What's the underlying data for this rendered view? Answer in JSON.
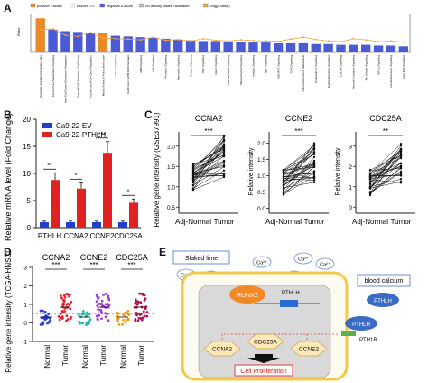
{
  "panels": {
    "a": "A",
    "b": "B",
    "c": "C",
    "d": "D",
    "e": "E"
  },
  "panel_a": {
    "legend": [
      "positive z-score",
      "z-score = 0",
      "negative z-score",
      "no activity pattern available",
      "-log(p-value)"
    ],
    "y_label": "Ratio",
    "categories": [
      "Estrogen-mediated S-phase Entry",
      "Kinetochore Metaphase Signaling",
      "Inter-Cell Cycle Checkpoint Regulation",
      "Role of CHK Proteins in Cell Cycle",
      "Cyclins and Cell Cycle Regulation",
      "Mitotic Roles of Polo-Like Kinase",
      "Glioma Signaling",
      "Cell Cycle: G2/M DNA Damage",
      "ATM Signaling",
      "p53 Signaling",
      "Prolactin Signaling",
      "Pancreatic Signaling",
      "Relaxin Signaling",
      "HGF Signaling",
      "Renin Signaling",
      "Cell-Fibroblast Signaling",
      "Mesenchymal Signaling",
      "Integrin Signaling",
      "NGF Signaling",
      "PI3K/AKT Signaling",
      "GP6 Signaling",
      "Colorectal Cancer Metastasis",
      "Endothelin-1 Signaling",
      "Ephrin Receptor Signaling",
      "CXCR4 Signaling",
      "Axonal Guidance Signaling",
      "Tec Kinase Signaling",
      "HIF1a Signaling",
      "Insulin Receptor Signaling",
      "Rho GDI Signaling"
    ],
    "bar_heights": [
      0.45,
      0.3,
      0.28,
      0.27,
      0.26,
      0.25,
      0.22,
      0.21,
      0.2,
      0.19,
      0.18,
      0.17,
      0.16,
      0.15,
      0.15,
      0.14,
      0.14,
      0.13,
      0.13,
      0.12,
      0.12,
      0.12,
      0.11,
      0.11,
      0.1,
      0.1,
      0.1,
      0.09,
      0.09,
      0.08
    ],
    "bar_kind": [
      "pos",
      "neg",
      "neg",
      "neg",
      "neg",
      "pos",
      "neg",
      "neg",
      "neg",
      "neg",
      "neg",
      "neg",
      "neg",
      "neg",
      "neg",
      "neg",
      "neg",
      "neg",
      "neg",
      "neg",
      "neg",
      "neg",
      "neg",
      "neg",
      "neg",
      "neg",
      "neg",
      "neg",
      "neg",
      "neg"
    ],
    "pvalue_line": [
      0.6,
      0.62,
      0.45,
      0.42,
      0.52,
      0.38,
      0.36,
      0.35,
      0.33,
      0.4,
      0.32,
      0.34,
      0.3,
      0.36,
      0.32,
      0.3,
      0.33,
      0.31,
      0.3,
      0.29,
      0.35,
      0.4,
      0.34,
      0.3,
      0.28,
      0.36,
      0.33,
      0.28,
      0.3,
      0.27
    ],
    "colors": {
      "positive": "#e98a2a",
      "negative": "#4a5bd4",
      "line": "#f0a640",
      "zero": "#ffffff"
    }
  },
  "panel_b": {
    "y_label": "Relative mRNA level (Fold Change)",
    "legend": [
      "Ca9-22-EV",
      "Ca9-22-PTHLH"
    ],
    "colors": [
      "#1f3fcf",
      "#e02222"
    ],
    "categories": [
      "PTHLH",
      "CCNA2",
      "CCNE2",
      "CDC25A"
    ],
    "series": [
      {
        "name": "Ca9-22-EV",
        "values": [
          1,
          1,
          1,
          1
        ]
      },
      {
        "name": "Ca9-22-PTHLH",
        "values": [
          8.8,
          7.2,
          13.8,
          4.6
        ]
      }
    ],
    "significance": [
      "**",
      "*",
      "***",
      "*"
    ],
    "ylim": [
      0,
      20
    ],
    "ticks": [
      "0",
      "5",
      "10",
      "15",
      "20"
    ]
  },
  "panel_c": {
    "y_label_main": "Relative gene intensity (GSE37991)",
    "y_label_other": "Relative intensity",
    "plots": [
      {
        "title": "CCNA2",
        "sig": "***",
        "ticks": [
          "0.5",
          "1.0",
          "1.5",
          "2.0"
        ]
      },
      {
        "title": "CCNE2",
        "sig": "***",
        "ticks": [
          "0.0",
          "0.5",
          "1.0",
          "1.5",
          "2.0"
        ]
      },
      {
        "title": "CDC25A",
        "sig": "**",
        "ticks": [
          "0",
          "1",
          "2",
          "3"
        ]
      }
    ],
    "x_labels": [
      "Adj-Normal",
      "Tumor"
    ]
  },
  "panel_d": {
    "y_label": "Relative gene intensity (TCGA-HNSCC)",
    "groups": [
      {
        "title": "CCNA2",
        "sig": "***"
      },
      {
        "title": "CCNE2",
        "sig": "***"
      },
      {
        "title": "CDC25A",
        "sig": "***"
      }
    ],
    "x_labels": [
      "Normal",
      "Tumor"
    ],
    "ticks": [
      "-1",
      "0",
      "1",
      "2",
      "3"
    ],
    "colors": {
      "CCNA2_normal": "#2b3ed8",
      "CCNA2_tumor": "#e2222e",
      "CCNE2_normal": "#22b8a8",
      "CCNE2_tumor": "#9b3fd6",
      "CDC25A_normal": "#f29a1d",
      "CDC25A_tumor": "#b0125a"
    }
  },
  "panel_e": {
    "slaked_lime": "Slaked lime",
    "ca_label": "Ca²⁺",
    "blood_calcium": "blood calcium",
    "runx2": "RUNX2",
    "pthlh": "PTHLH",
    "pth1r": "PTH1R",
    "targets": [
      "CCNA2",
      "CDC25A",
      "CCNE2"
    ],
    "outcome": "Cell Proliferation",
    "colors": {
      "cell_border": "#f2c94c",
      "nucleus": "#d9d9d9",
      "hexagon": "#fde9b8",
      "blue": "#3a6cc4",
      "outcome_border": "#e23b3b"
    }
  }
}
